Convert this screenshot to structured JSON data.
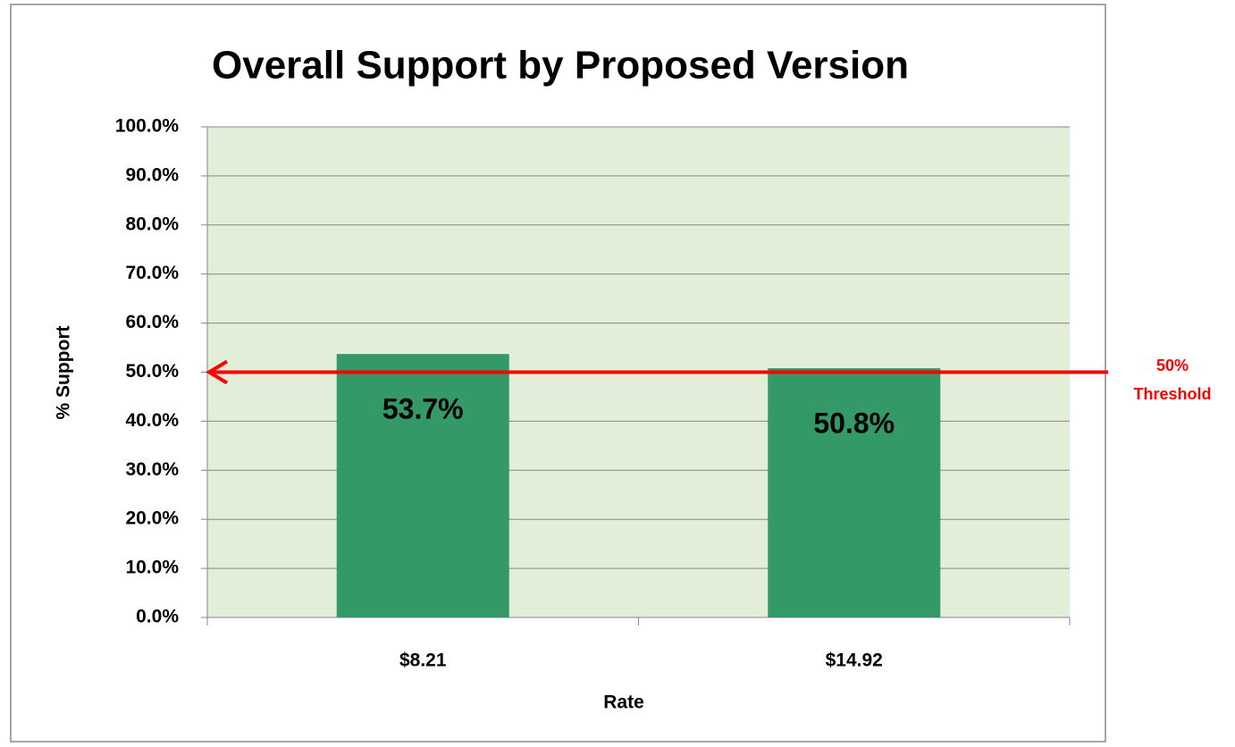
{
  "chart_data": {
    "type": "bar",
    "title": "Overall Support by Proposed Version",
    "x_label": "Rate",
    "y_label": "% Support",
    "categories": [
      "$8.21",
      "$14.92"
    ],
    "values": [
      53.7,
      50.8
    ],
    "value_labels": [
      "53.7%",
      "50.8%"
    ],
    "color": "#339966",
    "plot_background": "#e3eed9",
    "ylim": [
      0,
      100
    ],
    "yticks": [
      {
        "value": 0,
        "label": "0.0%"
      },
      {
        "value": 10,
        "label": "10.0%"
      },
      {
        "value": 20,
        "label": "20.0%"
      },
      {
        "value": 30,
        "label": "30.0%"
      },
      {
        "value": 40,
        "label": "40.0%"
      },
      {
        "value": 50,
        "label": "50.0%"
      },
      {
        "value": 60,
        "label": "60.0%"
      },
      {
        "value": 70,
        "label": "70.0%"
      },
      {
        "value": 80,
        "label": "80.0%"
      },
      {
        "value": 90,
        "label": "90.0%"
      },
      {
        "value": 100,
        "label": "100.0%"
      }
    ],
    "grid": true,
    "threshold": {
      "value": 50,
      "text": [
        "50%",
        "Threshold"
      ],
      "color": "#ff0000"
    }
  }
}
